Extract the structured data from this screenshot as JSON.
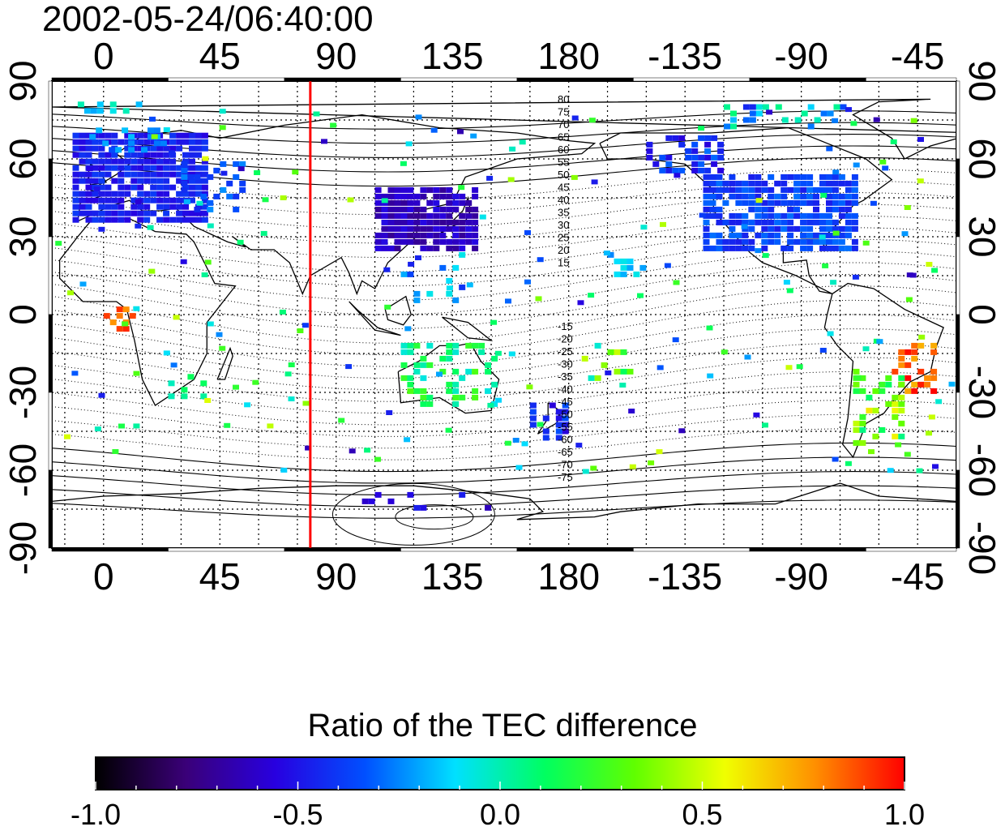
{
  "title": "2002-05-24/06:40:00",
  "map": {
    "x_tick_labels": [
      "0",
      "45",
      "90",
      "135",
      "180",
      "-135",
      "-90",
      "-45"
    ],
    "y_tick_labels_left": [
      "90",
      "60",
      "30",
      "0",
      "-30",
      "-60",
      "-90"
    ],
    "y_tick_labels_right": [
      "90",
      "60",
      "30",
      "0",
      "-30",
      "-60",
      "-90"
    ],
    "lon_range": [
      -20,
      330
    ],
    "lat_range": [
      -90,
      90
    ],
    "red_line_longitude": 80,
    "red_line_color": "#ff0000",
    "grid": "dotted",
    "north_contour_labels": [
      "80",
      "75",
      "70",
      "65",
      "60",
      "55",
      "50",
      "45",
      "40",
      "35",
      "30",
      "25",
      "20",
      "15"
    ],
    "south_contour_labels": [
      "-15",
      "-20",
      "-25",
      "-30",
      "-35",
      "-40",
      "-45",
      "-50",
      "-55",
      "-60",
      "-65",
      "-70",
      "-75"
    ]
  },
  "colorbar": {
    "title": "Ratio of the TEC difference",
    "tick_labels": [
      "-1.0",
      "-0.5",
      "0.0",
      "0.5",
      "1.0"
    ],
    "range": [
      -1.0,
      1.0
    ],
    "colors": [
      "#000000",
      "#3a0078",
      "#2800e0",
      "#0050ff",
      "#00e0ff",
      "#00ff60",
      "#60ff00",
      "#f0ff00",
      "#ff9000",
      "#ff0000"
    ]
  }
}
